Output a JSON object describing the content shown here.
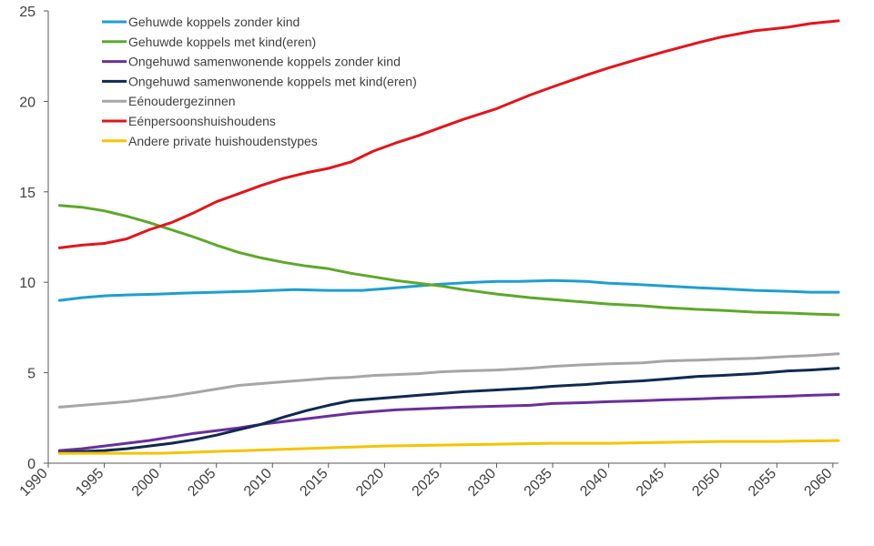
{
  "chart_data": {
    "type": "line",
    "x_ticks": [
      1990,
      1995,
      2000,
      2005,
      2010,
      2015,
      2020,
      2025,
      2030,
      2035,
      2040,
      2045,
      2050,
      2055,
      2060
    ],
    "y_ticks": [
      0,
      5,
      10,
      15,
      20,
      25
    ],
    "xlim": [
      1990,
      2060.5
    ],
    "ylim": [
      0,
      25
    ],
    "grid": false,
    "legend_position": "top-left",
    "series": [
      {
        "name": "Gehuwde koppels zonder kind",
        "color": "#1f9ed1",
        "points": [
          [
            1991,
            9.0
          ],
          [
            1993,
            9.15
          ],
          [
            1995,
            9.25
          ],
          [
            1997,
            9.3
          ],
          [
            2000,
            9.35
          ],
          [
            2002,
            9.4
          ],
          [
            2005,
            9.45
          ],
          [
            2008,
            9.5
          ],
          [
            2010,
            9.55
          ],
          [
            2012,
            9.6
          ],
          [
            2015,
            9.55
          ],
          [
            2018,
            9.55
          ],
          [
            2020,
            9.65
          ],
          [
            2022,
            9.75
          ],
          [
            2025,
            9.9
          ],
          [
            2028,
            10.0
          ],
          [
            2030,
            10.05
          ],
          [
            2032,
            10.05
          ],
          [
            2035,
            10.1
          ],
          [
            2038,
            10.05
          ],
          [
            2040,
            9.95
          ],
          [
            2042,
            9.9
          ],
          [
            2045,
            9.8
          ],
          [
            2048,
            9.7
          ],
          [
            2050,
            9.65
          ],
          [
            2053,
            9.55
          ],
          [
            2056,
            9.5
          ],
          [
            2058,
            9.45
          ],
          [
            2060.5,
            9.45
          ]
        ]
      },
      {
        "name": "Gehuwde koppels met kind(eren)",
        "color": "#5da82a",
        "points": [
          [
            1991,
            14.25
          ],
          [
            1993,
            14.15
          ],
          [
            1995,
            13.95
          ],
          [
            1997,
            13.65
          ],
          [
            1999,
            13.3
          ],
          [
            2001,
            12.9
          ],
          [
            2003,
            12.5
          ],
          [
            2005,
            12.05
          ],
          [
            2007,
            11.65
          ],
          [
            2009,
            11.35
          ],
          [
            2011,
            11.1
          ],
          [
            2013,
            10.9
          ],
          [
            2015,
            10.75
          ],
          [
            2017,
            10.5
          ],
          [
            2019,
            10.3
          ],
          [
            2021,
            10.1
          ],
          [
            2023,
            9.95
          ],
          [
            2025,
            9.8
          ],
          [
            2027,
            9.6
          ],
          [
            2030,
            9.35
          ],
          [
            2033,
            9.15
          ],
          [
            2035,
            9.05
          ],
          [
            2038,
            8.9
          ],
          [
            2040,
            8.8
          ],
          [
            2043,
            8.7
          ],
          [
            2045,
            8.6
          ],
          [
            2048,
            8.5
          ],
          [
            2050,
            8.45
          ],
          [
            2053,
            8.35
          ],
          [
            2056,
            8.3
          ],
          [
            2058,
            8.25
          ],
          [
            2060.5,
            8.2
          ]
        ]
      },
      {
        "name": "Ongehuwd samenwonende koppels zonder kind",
        "color": "#6a2f9c",
        "points": [
          [
            1991,
            0.7
          ],
          [
            1993,
            0.8
          ],
          [
            1995,
            0.95
          ],
          [
            1997,
            1.1
          ],
          [
            1999,
            1.25
          ],
          [
            2001,
            1.45
          ],
          [
            2003,
            1.65
          ],
          [
            2005,
            1.8
          ],
          [
            2007,
            1.95
          ],
          [
            2009,
            2.15
          ],
          [
            2011,
            2.3
          ],
          [
            2013,
            2.45
          ],
          [
            2015,
            2.6
          ],
          [
            2017,
            2.75
          ],
          [
            2019,
            2.85
          ],
          [
            2021,
            2.95
          ],
          [
            2023,
            3.0
          ],
          [
            2025,
            3.05
          ],
          [
            2027,
            3.1
          ],
          [
            2030,
            3.15
          ],
          [
            2033,
            3.2
          ],
          [
            2035,
            3.3
          ],
          [
            2038,
            3.35
          ],
          [
            2040,
            3.4
          ],
          [
            2043,
            3.45
          ],
          [
            2045,
            3.5
          ],
          [
            2048,
            3.55
          ],
          [
            2050,
            3.6
          ],
          [
            2053,
            3.65
          ],
          [
            2056,
            3.7
          ],
          [
            2058,
            3.75
          ],
          [
            2060.5,
            3.8
          ]
        ]
      },
      {
        "name": "Ongehuwd samenwonende koppels met kind(eren)",
        "color": "#0f2a52",
        "points": [
          [
            1991,
            0.6
          ],
          [
            1993,
            0.65
          ],
          [
            1995,
            0.7
          ],
          [
            1997,
            0.8
          ],
          [
            1999,
            0.95
          ],
          [
            2001,
            1.1
          ],
          [
            2003,
            1.3
          ],
          [
            2005,
            1.55
          ],
          [
            2007,
            1.85
          ],
          [
            2009,
            2.15
          ],
          [
            2011,
            2.55
          ],
          [
            2013,
            2.9
          ],
          [
            2015,
            3.2
          ],
          [
            2017,
            3.45
          ],
          [
            2019,
            3.55
          ],
          [
            2021,
            3.65
          ],
          [
            2023,
            3.75
          ],
          [
            2025,
            3.85
          ],
          [
            2027,
            3.95
          ],
          [
            2030,
            4.05
          ],
          [
            2033,
            4.15
          ],
          [
            2035,
            4.25
          ],
          [
            2038,
            4.35
          ],
          [
            2040,
            4.45
          ],
          [
            2043,
            4.55
          ],
          [
            2045,
            4.65
          ],
          [
            2048,
            4.8
          ],
          [
            2050,
            4.85
          ],
          [
            2053,
            4.95
          ],
          [
            2056,
            5.1
          ],
          [
            2058,
            5.15
          ],
          [
            2060.5,
            5.25
          ]
        ]
      },
      {
        "name": "Eénoudergezinnen",
        "color": "#a6a6a6",
        "points": [
          [
            1991,
            3.1
          ],
          [
            1993,
            3.2
          ],
          [
            1995,
            3.3
          ],
          [
            1997,
            3.4
          ],
          [
            1999,
            3.55
          ],
          [
            2001,
            3.7
          ],
          [
            2003,
            3.9
          ],
          [
            2005,
            4.1
          ],
          [
            2007,
            4.3
          ],
          [
            2009,
            4.4
          ],
          [
            2011,
            4.5
          ],
          [
            2013,
            4.6
          ],
          [
            2015,
            4.7
          ],
          [
            2017,
            4.75
          ],
          [
            2019,
            4.85
          ],
          [
            2021,
            4.9
          ],
          [
            2023,
            4.95
          ],
          [
            2025,
            5.05
          ],
          [
            2027,
            5.1
          ],
          [
            2030,
            5.15
          ],
          [
            2033,
            5.25
          ],
          [
            2035,
            5.35
          ],
          [
            2038,
            5.45
          ],
          [
            2040,
            5.5
          ],
          [
            2043,
            5.55
          ],
          [
            2045,
            5.65
          ],
          [
            2048,
            5.7
          ],
          [
            2050,
            5.75
          ],
          [
            2053,
            5.8
          ],
          [
            2056,
            5.9
          ],
          [
            2058,
            5.95
          ],
          [
            2060.5,
            6.05
          ]
        ]
      },
      {
        "name": "Eénpersoonshuishoudens",
        "color": "#e3151b",
        "points": [
          [
            1991,
            11.9
          ],
          [
            1993,
            12.05
          ],
          [
            1995,
            12.15
          ],
          [
            1997,
            12.4
          ],
          [
            1999,
            12.9
          ],
          [
            2001,
            13.3
          ],
          [
            2003,
            13.85
          ],
          [
            2005,
            14.45
          ],
          [
            2007,
            14.9
          ],
          [
            2009,
            15.35
          ],
          [
            2011,
            15.75
          ],
          [
            2013,
            16.05
          ],
          [
            2015,
            16.3
          ],
          [
            2017,
            16.65
          ],
          [
            2019,
            17.25
          ],
          [
            2021,
            17.7
          ],
          [
            2023,
            18.1
          ],
          [
            2025,
            18.55
          ],
          [
            2027,
            19.0
          ],
          [
            2030,
            19.6
          ],
          [
            2033,
            20.35
          ],
          [
            2035,
            20.8
          ],
          [
            2038,
            21.45
          ],
          [
            2040,
            21.85
          ],
          [
            2043,
            22.4
          ],
          [
            2045,
            22.75
          ],
          [
            2048,
            23.25
          ],
          [
            2050,
            23.55
          ],
          [
            2053,
            23.9
          ],
          [
            2056,
            24.1
          ],
          [
            2058,
            24.3
          ],
          [
            2060.5,
            24.45
          ]
        ]
      },
      {
        "name": "Andere private huishoudenstypes",
        "color": "#f5c400",
        "points": [
          [
            1991,
            0.55
          ],
          [
            1995,
            0.55
          ],
          [
            2000,
            0.55
          ],
          [
            2005,
            0.65
          ],
          [
            2010,
            0.75
          ],
          [
            2015,
            0.85
          ],
          [
            2020,
            0.95
          ],
          [
            2025,
            1.0
          ],
          [
            2030,
            1.05
          ],
          [
            2035,
            1.1
          ],
          [
            2040,
            1.1
          ],
          [
            2045,
            1.15
          ],
          [
            2050,
            1.2
          ],
          [
            2055,
            1.2
          ],
          [
            2060.5,
            1.25
          ]
        ]
      }
    ]
  }
}
